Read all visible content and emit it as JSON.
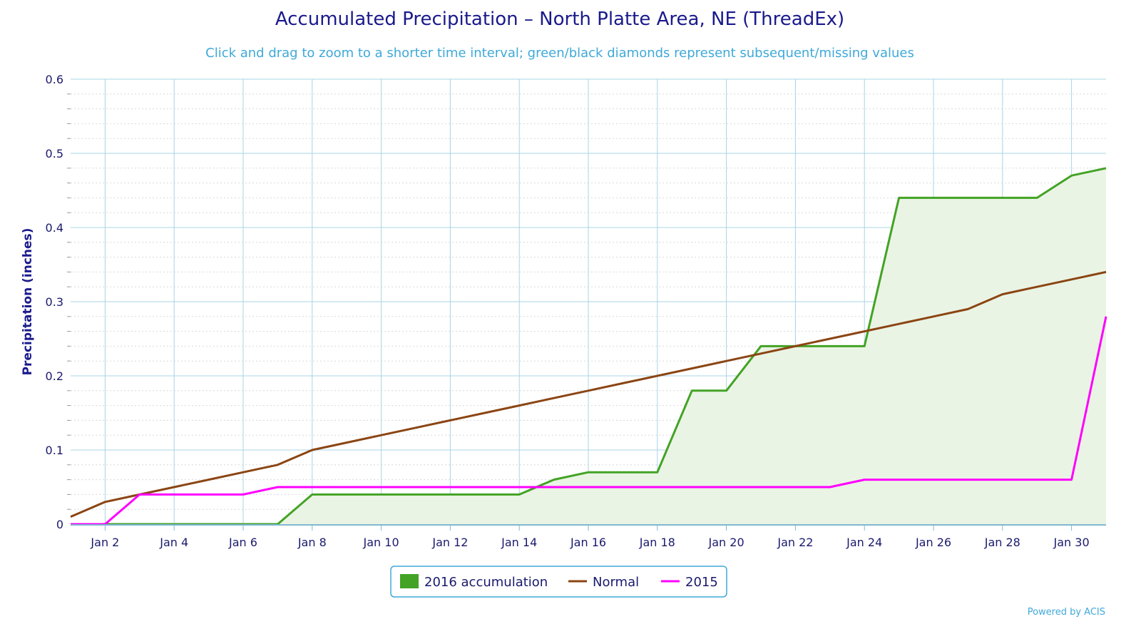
{
  "title": "Accumulated Precipitation – North Platte Area, NE (ThreadEx)",
  "subtitle": "Click and drag to zoom to a shorter time interval; green/black diamonds represent subsequent/missing values",
  "credit": "Powered by ACIS",
  "chart_data": {
    "type": "line",
    "ylabel": "Precipitation (inches)",
    "xlabel": "",
    "ylim": [
      0,
      0.6
    ],
    "xlim": [
      1,
      31
    ],
    "y_ticks": [
      0,
      0.1,
      0.2,
      0.3,
      0.4,
      0.5,
      0.6
    ],
    "y_tick_labels": [
      "0",
      "0.1",
      "0.2",
      "0.3",
      "0.4",
      "0.5",
      "0.6"
    ],
    "x_ticks": [
      2,
      4,
      6,
      8,
      10,
      12,
      14,
      16,
      18,
      20,
      22,
      24,
      26,
      28,
      30
    ],
    "x_tick_labels": [
      "Jan 2",
      "Jan 4",
      "Jan 6",
      "Jan 8",
      "Jan 10",
      "Jan 12",
      "Jan 14",
      "Jan 16",
      "Jan 18",
      "Jan 20",
      "Jan 22",
      "Jan 24",
      "Jan 26",
      "Jan 28",
      "Jan 30"
    ],
    "grid": true,
    "legend_position": "bottom-center",
    "x": [
      1,
      2,
      3,
      4,
      5,
      6,
      7,
      8,
      9,
      10,
      11,
      12,
      13,
      14,
      15,
      16,
      17,
      18,
      19,
      20,
      21,
      22,
      23,
      24,
      25,
      26,
      27,
      28,
      29,
      30,
      31
    ],
    "series": [
      {
        "name": "2016 accumulation",
        "style": "area",
        "color": "#43a325",
        "fill": "#eaf4e4",
        "values": [
          0,
          0,
          0,
          0,
          0,
          0,
          0,
          0.04,
          0.04,
          0.04,
          0.04,
          0.04,
          0.04,
          0.04,
          0.06,
          0.07,
          0.07,
          0.07,
          0.18,
          0.18,
          0.24,
          0.24,
          0.24,
          0.24,
          0.44,
          0.44,
          0.44,
          0.44,
          0.44,
          0.47,
          0.48
        ]
      },
      {
        "name": "Normal",
        "style": "line",
        "color": "#8b4513",
        "values": [
          0.01,
          0.03,
          0.04,
          0.05,
          0.06,
          0.07,
          0.08,
          0.1,
          0.11,
          0.12,
          0.13,
          0.14,
          0.15,
          0.16,
          0.17,
          0.18,
          0.19,
          0.2,
          0.21,
          0.22,
          0.23,
          0.24,
          0.25,
          0.26,
          0.27,
          0.28,
          0.29,
          0.31,
          0.32,
          0.33,
          0.34
        ]
      },
      {
        "name": "2015",
        "style": "line",
        "color": "#ff00ff",
        "values": [
          0,
          0,
          0.04,
          0.04,
          0.04,
          0.04,
          0.05,
          0.05,
          0.05,
          0.05,
          0.05,
          0.05,
          0.05,
          0.05,
          0.05,
          0.05,
          0.05,
          0.05,
          0.05,
          0.05,
          0.05,
          0.05,
          0.05,
          0.06,
          0.06,
          0.06,
          0.06,
          0.06,
          0.06,
          0.06,
          0.28
        ]
      }
    ]
  },
  "colors": {
    "grid_major": "#a9d4e6",
    "grid_minor": "#d9d9d9",
    "axis": "#7fb8d2",
    "legend_border": "#3fa9d8"
  }
}
